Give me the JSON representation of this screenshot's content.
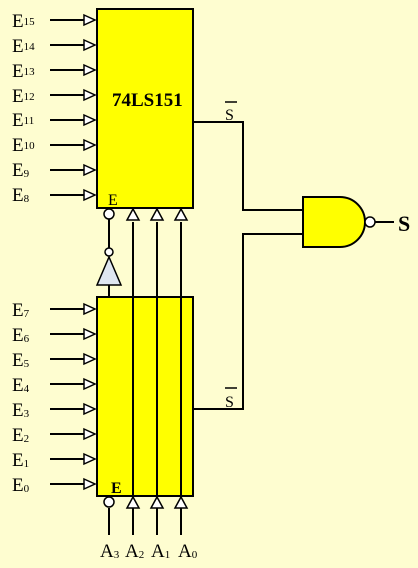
{
  "upper_chip": {
    "name": "74LS151",
    "enable_label": "E",
    "output_label": "S",
    "inputs": [
      {
        "letter": "E",
        "index": "15"
      },
      {
        "letter": "E",
        "index": "14"
      },
      {
        "letter": "E",
        "index": "13"
      },
      {
        "letter": "E",
        "index": "12"
      },
      {
        "letter": "E",
        "index": "11"
      },
      {
        "letter": "E",
        "index": "10"
      },
      {
        "letter": "E",
        "index": "9"
      },
      {
        "letter": "E",
        "index": "8"
      }
    ]
  },
  "lower_chip": {
    "enable_label": "E",
    "output_label": "S",
    "inputs": [
      {
        "letter": "E",
        "index": "7"
      },
      {
        "letter": "E",
        "index": "6"
      },
      {
        "letter": "E",
        "index": "5"
      },
      {
        "letter": "E",
        "index": "4"
      },
      {
        "letter": "E",
        "index": "3"
      },
      {
        "letter": "E",
        "index": "2"
      },
      {
        "letter": "E",
        "index": "1"
      },
      {
        "letter": "E",
        "index": "0"
      }
    ]
  },
  "address_inputs": [
    {
      "letter": "A",
      "index": "3"
    },
    {
      "letter": "A",
      "index": "2"
    },
    {
      "letter": "A",
      "index": "1"
    },
    {
      "letter": "A",
      "index": "0"
    }
  ],
  "output": {
    "label": "S"
  },
  "colors": {
    "chip_fill": "#ffff00",
    "gate_fill": "#ffff00",
    "inverter_fill": "#dfe6f0",
    "background": "#fefdd0",
    "wire": "#000000"
  }
}
